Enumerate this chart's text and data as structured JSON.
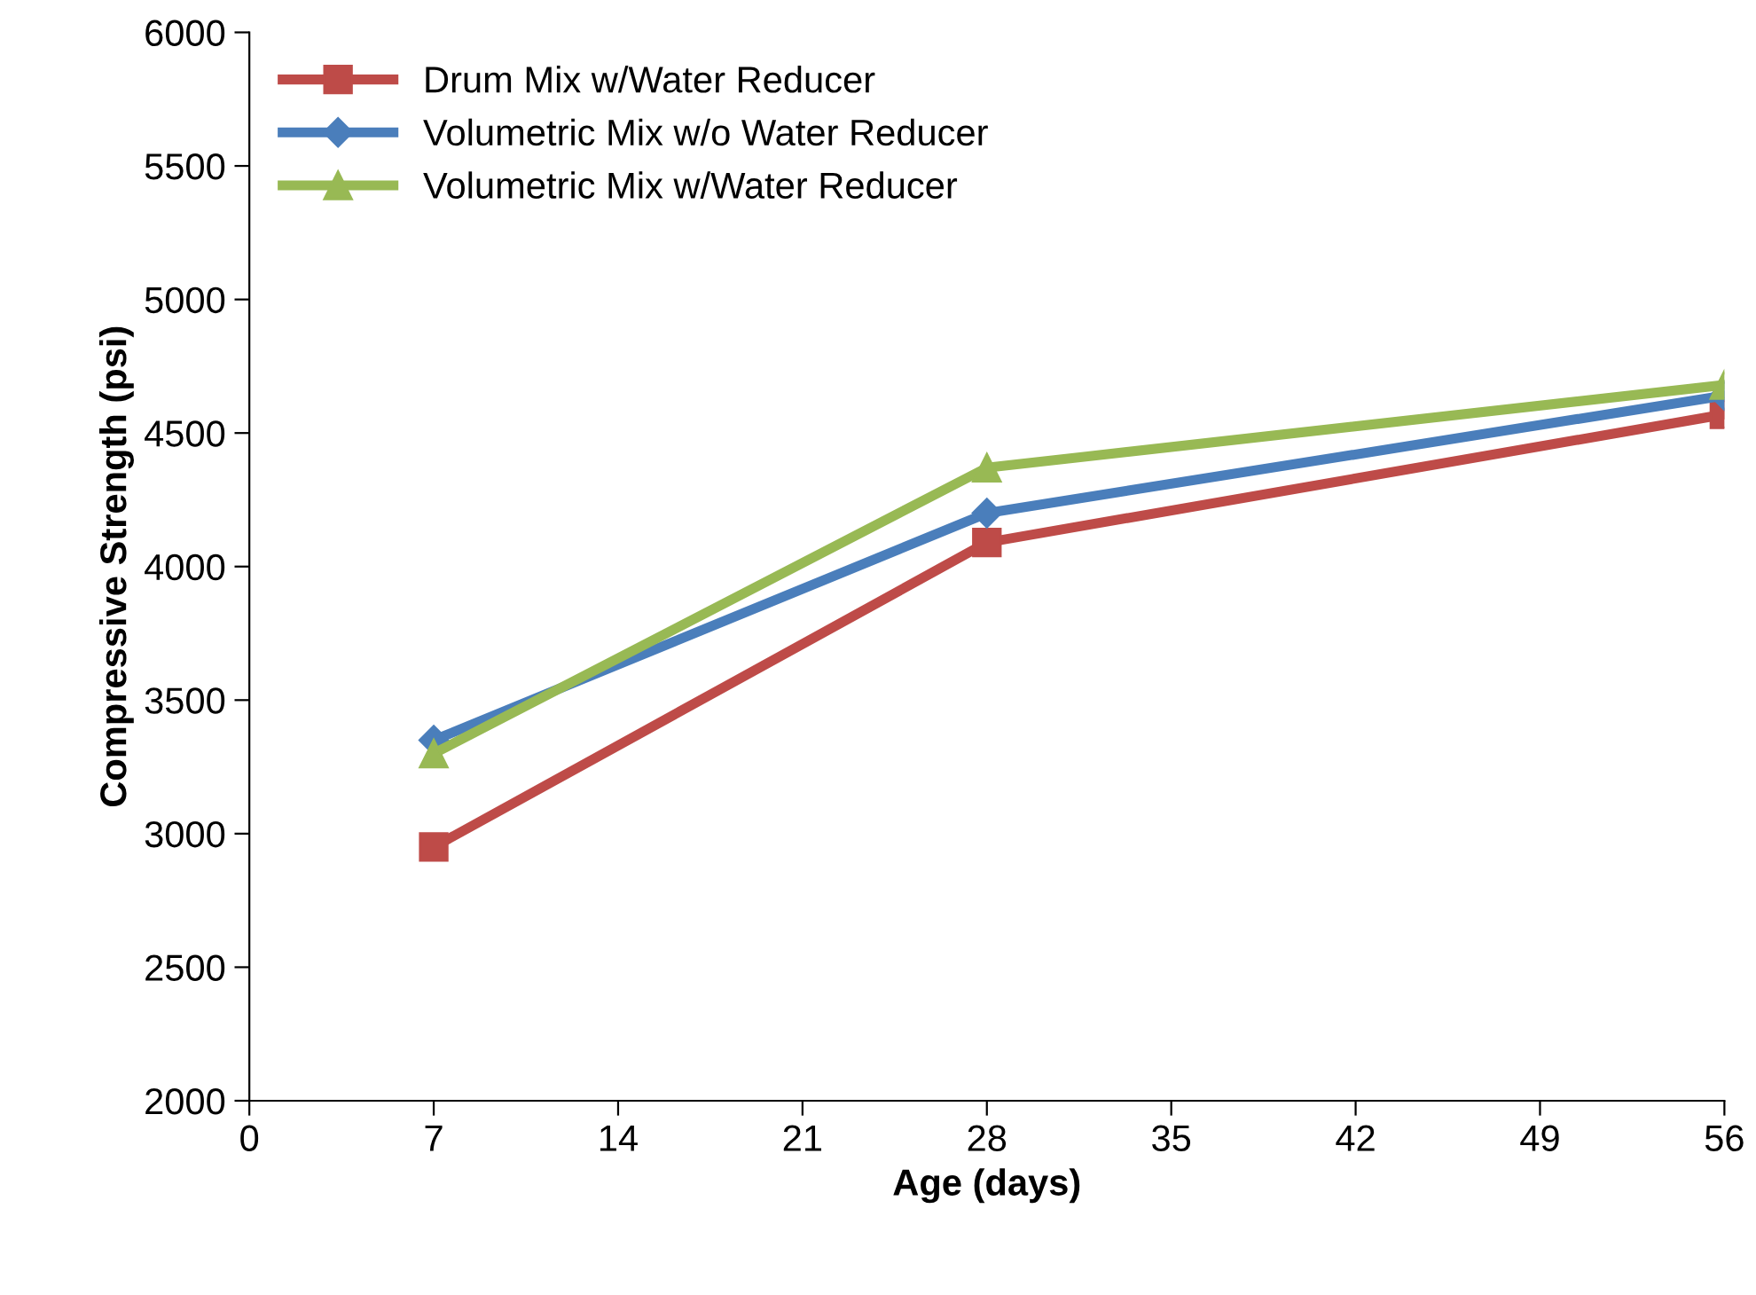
{
  "chart_data": {
    "type": "line",
    "xlabel": "Age (days)",
    "ylabel": "Compressive Strength (psi)",
    "x": [
      7,
      28,
      56
    ],
    "series": [
      {
        "name": "Drum Mix w/Water Reducer",
        "color": "#be4b48",
        "marker": "square",
        "values": [
          2950,
          4090,
          4570
        ]
      },
      {
        "name": "Volumetric Mix w/o Water Reducer",
        "color": "#4a7ebb",
        "marker": "diamond",
        "values": [
          3350,
          4200,
          4640
        ]
      },
      {
        "name": "Volumetric Mix w/Water Reducer",
        "color": "#98b954",
        "marker": "triangle",
        "values": [
          3300,
          4370,
          4680
        ]
      }
    ],
    "xlim": [
      0,
      56
    ],
    "xticks": [
      0,
      7,
      14,
      21,
      28,
      35,
      42,
      49,
      56
    ],
    "ylim": [
      2000,
      6000
    ],
    "yticks": [
      2000,
      2500,
      3000,
      3500,
      4000,
      4500,
      5000,
      5500,
      6000
    ],
    "legend": "top left",
    "line_style": "solid"
  }
}
